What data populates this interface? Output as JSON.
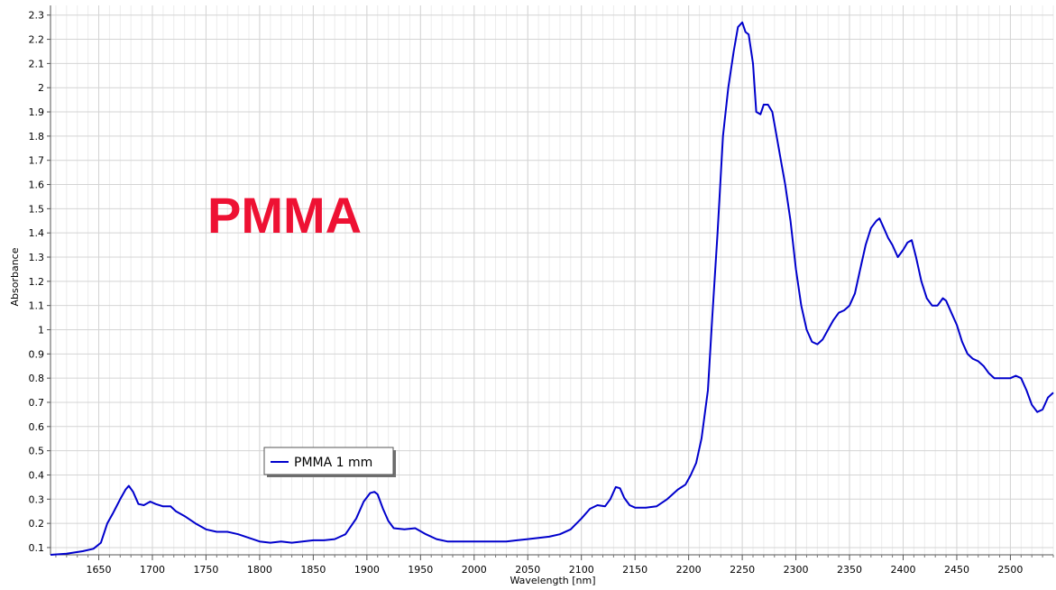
{
  "chart_data": {
    "type": "line",
    "annotation": "PMMA",
    "xlabel": "Wavelength [nm]",
    "ylabel": "Absorbance",
    "xlim": [
      1605,
      2540
    ],
    "ylim": [
      0.07,
      2.34
    ],
    "x_ticks": [
      1650,
      1700,
      1750,
      1800,
      1850,
      1900,
      1950,
      2000,
      2050,
      2100,
      2150,
      2200,
      2250,
      2300,
      2350,
      2400,
      2450,
      2500
    ],
    "y_ticks": [
      0.1,
      0.2,
      0.3,
      0.4,
      0.5,
      0.6,
      0.7,
      0.8,
      0.9,
      1,
      1.1,
      1.2,
      1.3,
      1.4,
      1.5,
      1.6,
      1.7,
      1.8,
      1.9,
      2,
      2.1,
      2.2,
      2.3
    ],
    "grid": true,
    "legend_position": "lower-left",
    "colors": {
      "line": "#0000cc",
      "grid": "#d4d4d4",
      "annotation": "#ee1133"
    },
    "series": [
      {
        "name": "PMMA 1 mm",
        "x": [
          1605,
          1620,
          1635,
          1645,
          1652,
          1658,
          1663,
          1670,
          1675,
          1678,
          1682,
          1687,
          1692,
          1698,
          1703,
          1710,
          1717,
          1722,
          1730,
          1740,
          1750,
          1760,
          1770,
          1780,
          1790,
          1800,
          1810,
          1820,
          1830,
          1840,
          1850,
          1860,
          1870,
          1880,
          1890,
          1897,
          1903,
          1907,
          1910,
          1915,
          1920,
          1925,
          1935,
          1945,
          1955,
          1965,
          1975,
          1990,
          2000,
          2010,
          2020,
          2030,
          2040,
          2050,
          2060,
          2070,
          2080,
          2090,
          2100,
          2108,
          2115,
          2122,
          2127,
          2132,
          2136,
          2140,
          2145,
          2150,
          2160,
          2170,
          2180,
          2190,
          2197,
          2202,
          2207,
          2212,
          2218,
          2222,
          2227,
          2232,
          2237,
          2242,
          2246,
          2250,
          2253,
          2256,
          2260,
          2263,
          2267,
          2270,
          2274,
          2278,
          2282,
          2286,
          2290,
          2295,
          2300,
          2305,
          2310,
          2315,
          2320,
          2325,
          2330,
          2335,
          2340,
          2345,
          2350,
          2355,
          2360,
          2365,
          2370,
          2375,
          2378,
          2382,
          2386,
          2390,
          2395,
          2400,
          2404,
          2408,
          2412,
          2417,
          2422,
          2427,
          2432,
          2437,
          2440,
          2445,
          2450,
          2455,
          2460,
          2465,
          2470,
          2475,
          2480,
          2485,
          2490,
          2495,
          2500,
          2505,
          2510,
          2515,
          2520,
          2525,
          2530,
          2535,
          2540
        ],
        "values": [
          0.07,
          0.075,
          0.085,
          0.095,
          0.12,
          0.2,
          0.24,
          0.3,
          0.34,
          0.355,
          0.33,
          0.28,
          0.275,
          0.29,
          0.28,
          0.27,
          0.27,
          0.25,
          0.23,
          0.2,
          0.175,
          0.165,
          0.165,
          0.155,
          0.14,
          0.125,
          0.12,
          0.125,
          0.12,
          0.125,
          0.13,
          0.13,
          0.135,
          0.155,
          0.22,
          0.29,
          0.325,
          0.33,
          0.32,
          0.26,
          0.21,
          0.18,
          0.175,
          0.18,
          0.155,
          0.135,
          0.125,
          0.125,
          0.125,
          0.125,
          0.125,
          0.125,
          0.13,
          0.135,
          0.14,
          0.145,
          0.155,
          0.175,
          0.22,
          0.26,
          0.275,
          0.27,
          0.3,
          0.35,
          0.345,
          0.305,
          0.275,
          0.265,
          0.265,
          0.27,
          0.3,
          0.34,
          0.36,
          0.4,
          0.45,
          0.55,
          0.75,
          1.05,
          1.4,
          1.8,
          2.0,
          2.15,
          2.25,
          2.27,
          2.23,
          2.22,
          2.1,
          1.9,
          1.89,
          1.93,
          1.93,
          1.9,
          1.8,
          1.7,
          1.6,
          1.45,
          1.25,
          1.1,
          1.0,
          0.95,
          0.94,
          0.96,
          1.0,
          1.04,
          1.07,
          1.08,
          1.1,
          1.15,
          1.25,
          1.35,
          1.42,
          1.45,
          1.46,
          1.42,
          1.38,
          1.35,
          1.3,
          1.33,
          1.36,
          1.37,
          1.3,
          1.2,
          1.13,
          1.1,
          1.1,
          1.13,
          1.12,
          1.07,
          1.02,
          0.95,
          0.9,
          0.88,
          0.87,
          0.85,
          0.82,
          0.8,
          0.8,
          0.8,
          0.8,
          0.81,
          0.8,
          0.75,
          0.69,
          0.66,
          0.67,
          0.72,
          0.74
        ]
      }
    ]
  }
}
